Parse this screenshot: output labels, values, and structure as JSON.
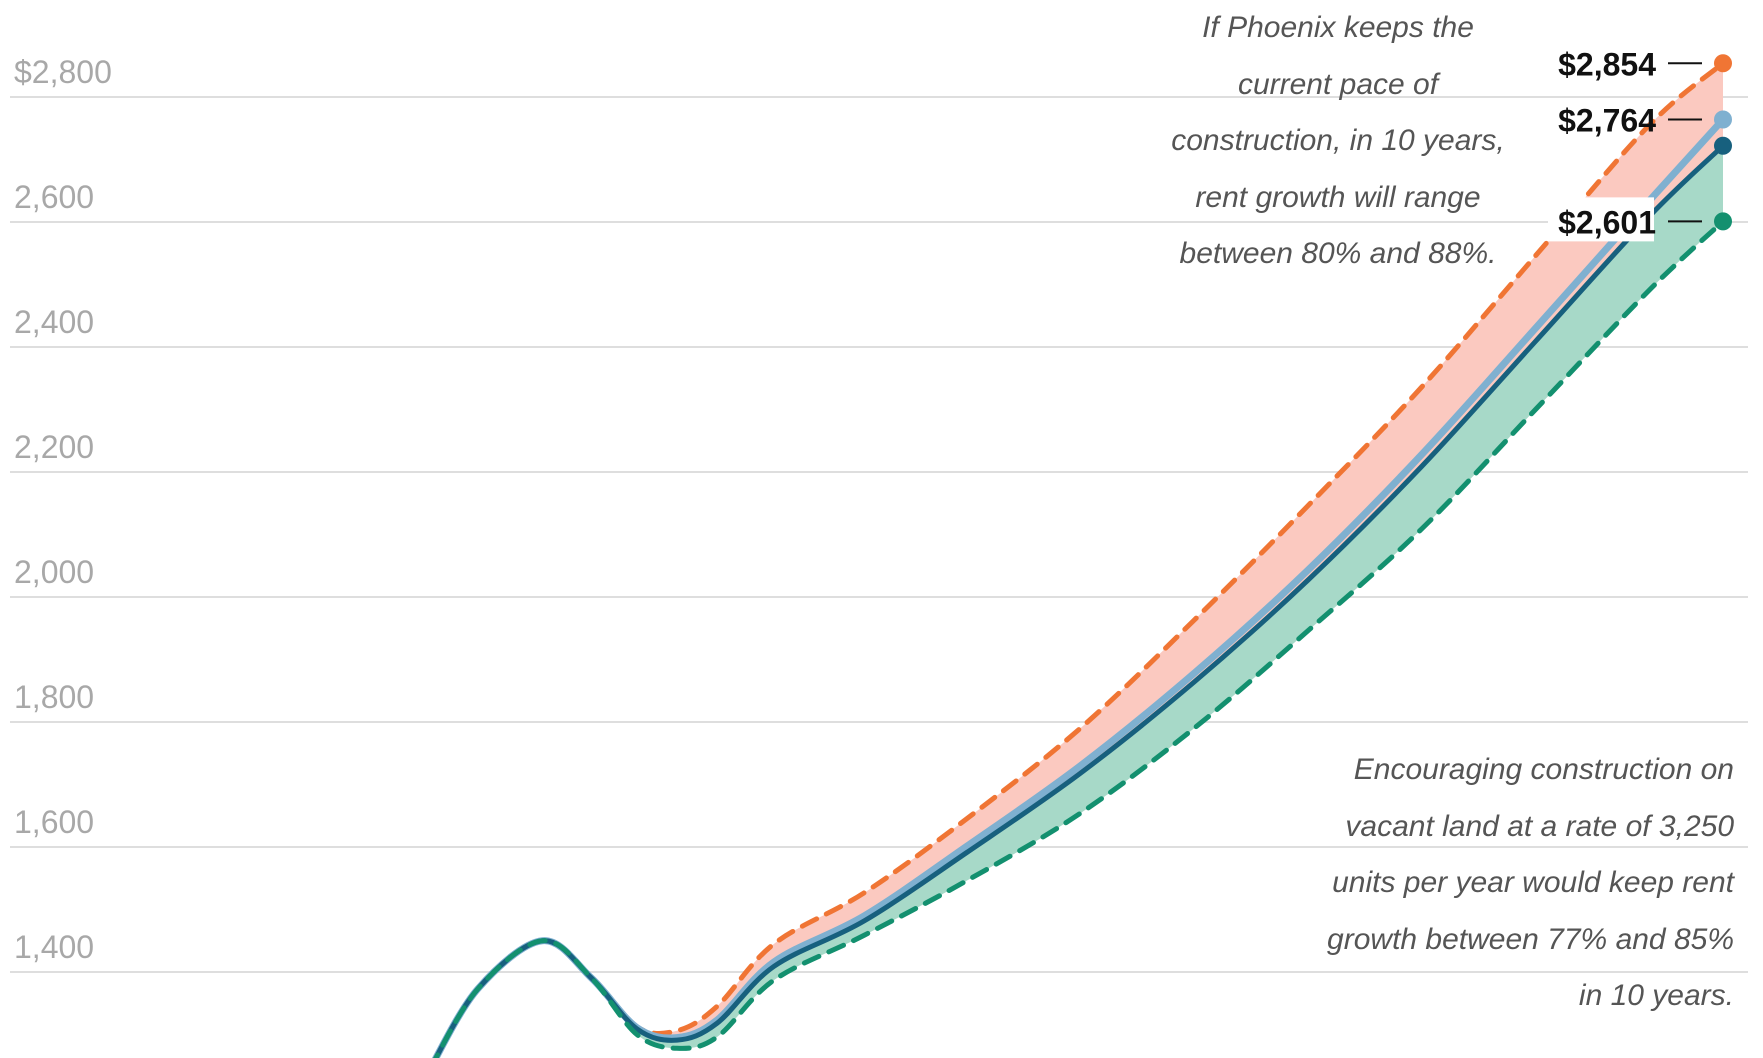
{
  "chart_data": {
    "type": "line",
    "title": "",
    "xlabel": "",
    "ylabel": "",
    "ylim": [
      1200,
      2900
    ],
    "y_ticks": [
      {
        "value": 1400,
        "label": "1,400"
      },
      {
        "value": 1600,
        "label": "1,600"
      },
      {
        "value": 1800,
        "label": "1,800"
      },
      {
        "value": 2000,
        "label": "2,000"
      },
      {
        "value": 2200,
        "label": "2,200"
      },
      {
        "value": 2400,
        "label": "2,400"
      },
      {
        "value": 2600,
        "label": "2,600"
      },
      {
        "value": 2800,
        "label": "$2,800"
      }
    ],
    "grid": true,
    "x_note": "time index 0-100 (no x-axis labels visible)",
    "series": [
      {
        "name": "high",
        "color": "#f07534",
        "dashed": true,
        "x": [
          0,
          3.7,
          8.7,
          12.5,
          16,
          19.1,
          22.2,
          26.6,
          33.6,
          41.5,
          50.3,
          59.1,
          67.9,
          76.7,
          85.5,
          94.3,
          100
        ],
        "y": [
          1245,
          1373,
          1450,
          1390,
          1312,
          1306,
          1345,
          1445,
          1527,
          1645,
          1790,
          1963,
          2146,
          2336,
          2546,
          2755,
          2854
        ]
      },
      {
        "name": "central-light",
        "color": "#7fb0d0",
        "dashed": false,
        "x": [
          0,
          3.7,
          8.7,
          12.5,
          16,
          19.1,
          22.2,
          26.6,
          33.6,
          41.5,
          50.3,
          59.1,
          67.9,
          76.7,
          85.5,
          94.3,
          100
        ],
        "y": [
          1245,
          1373,
          1450,
          1390,
          1311,
          1295,
          1323,
          1416,
          1490,
          1601,
          1730,
          1878,
          2043,
          2228,
          2430,
          2634,
          2764
        ]
      },
      {
        "name": "central",
        "color": "#17607e",
        "dashed": false,
        "x": [
          0,
          3.7,
          8.7,
          12.5,
          16,
          19.1,
          22.2,
          26.6,
          33.6,
          41.5,
          50.3,
          59.1,
          67.9,
          76.7,
          85.5,
          94.3,
          100
        ],
        "y": [
          1245,
          1373,
          1450,
          1390,
          1309,
          1291,
          1318,
          1409,
          1482,
          1591,
          1718,
          1864,
          2027,
          2209,
          2409,
          2609,
          2722
        ]
      },
      {
        "name": "low",
        "color": "#13906f",
        "dashed": true,
        "x": [
          0,
          3.7,
          8.7,
          12.5,
          16,
          19.1,
          22.2,
          26.6,
          33.6,
          41.5,
          50.3,
          59.1,
          67.9,
          76.7,
          85.5,
          94.3,
          100
        ],
        "y": [
          1245,
          1373,
          1450,
          1390,
          1300,
          1278,
          1296,
          1387,
          1459,
          1546,
          1654,
          1790,
          1946,
          2109,
          2300,
          2491,
          2601
        ]
      }
    ],
    "band_colors": {
      "upper": "#fbc9c0",
      "lower": "#a7d9c8"
    },
    "end_labels": [
      {
        "series": "high",
        "label": "$2,854"
      },
      {
        "series": "central-light",
        "label": "$2,764"
      },
      {
        "series": "low",
        "label": "$2,601"
      }
    ],
    "annotations": {
      "top": [
        "If Phoenix keeps the",
        "current pace of",
        "construction, in 10 years,",
        "rent growth will range",
        "between 80% and 88%."
      ],
      "bottom": [
        "Encouraging construction on",
        "vacant land at a rate of 3,250",
        "units per year would keep rent",
        "growth between 77% and 85%",
        "in 10 years."
      ]
    }
  }
}
